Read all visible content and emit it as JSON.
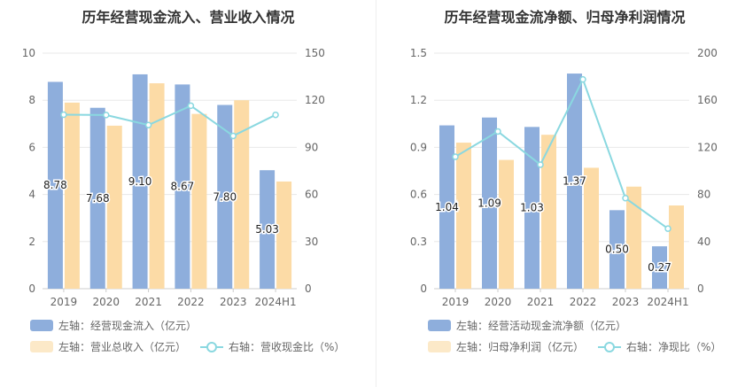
{
  "colors": {
    "bar1": "#8eaedc",
    "bar2": "#fcdba6",
    "line": "#8ad8e0",
    "grid": "#e8e8e8",
    "axis_text": "#666666"
  },
  "chart_data": [
    {
      "type": "bar",
      "title": "历年经营现金流入、营业收入情况",
      "categories": [
        "2019",
        "2020",
        "2021",
        "2022",
        "2023",
        "2024H1"
      ],
      "left_axis": {
        "ylim": [
          0,
          10
        ],
        "ticks": [
          "0",
          "2",
          "4",
          "6",
          "8",
          "10"
        ]
      },
      "right_axis": {
        "ylim": [
          0,
          150
        ],
        "ticks": [
          "0",
          "30",
          "60",
          "90",
          "120",
          "150"
        ]
      },
      "series": [
        {
          "name": "左轴：经营现金流入（亿元）",
          "axis": "left",
          "kind": "bar",
          "values": [
            8.78,
            7.68,
            9.1,
            8.67,
            7.8,
            5.03
          ],
          "labels": [
            "8.78",
            "7.68",
            "9.10",
            "8.67",
            "7.80",
            "5.03"
          ]
        },
        {
          "name": "左轴：营业总收入（亿元）",
          "axis": "left",
          "kind": "bar",
          "values": [
            7.9,
            6.92,
            8.72,
            7.42,
            8.0,
            4.55
          ]
        },
        {
          "name": "右轴：营收现金比（%）",
          "axis": "right",
          "kind": "line",
          "values": [
            110.8,
            110.6,
            104.2,
            116.5,
            97.3,
            110.7
          ]
        }
      ]
    },
    {
      "type": "bar",
      "title": "历年经营现金流净额、归母净利润情况",
      "categories": [
        "2019",
        "2020",
        "2021",
        "2022",
        "2023",
        "2024H1"
      ],
      "left_axis": {
        "ylim": [
          0,
          1.5
        ],
        "ticks": [
          "0",
          "0.3",
          "0.6",
          "0.9",
          "1.2",
          "1.5"
        ]
      },
      "right_axis": {
        "ylim": [
          0,
          200
        ],
        "ticks": [
          "0",
          "40",
          "80",
          "120",
          "160",
          "200"
        ]
      },
      "series": [
        {
          "name": "左轴：经营活动现金流净额（亿元）",
          "axis": "left",
          "kind": "bar",
          "values": [
            1.04,
            1.09,
            1.03,
            1.37,
            0.5,
            0.27
          ],
          "labels": [
            "1.04",
            "1.09",
            "1.03",
            "1.37",
            "0.50",
            "0.27"
          ]
        },
        {
          "name": "左轴：归母净利润（亿元）",
          "axis": "left",
          "kind": "bar",
          "values": [
            0.93,
            0.82,
            0.98,
            0.77,
            0.65,
            0.53
          ]
        },
        {
          "name": "右轴：净现比（%）",
          "axis": "right",
          "kind": "line",
          "values": [
            112.0,
            133.5,
            105.3,
            177.7,
            76.9,
            51.0
          ]
        }
      ]
    }
  ]
}
